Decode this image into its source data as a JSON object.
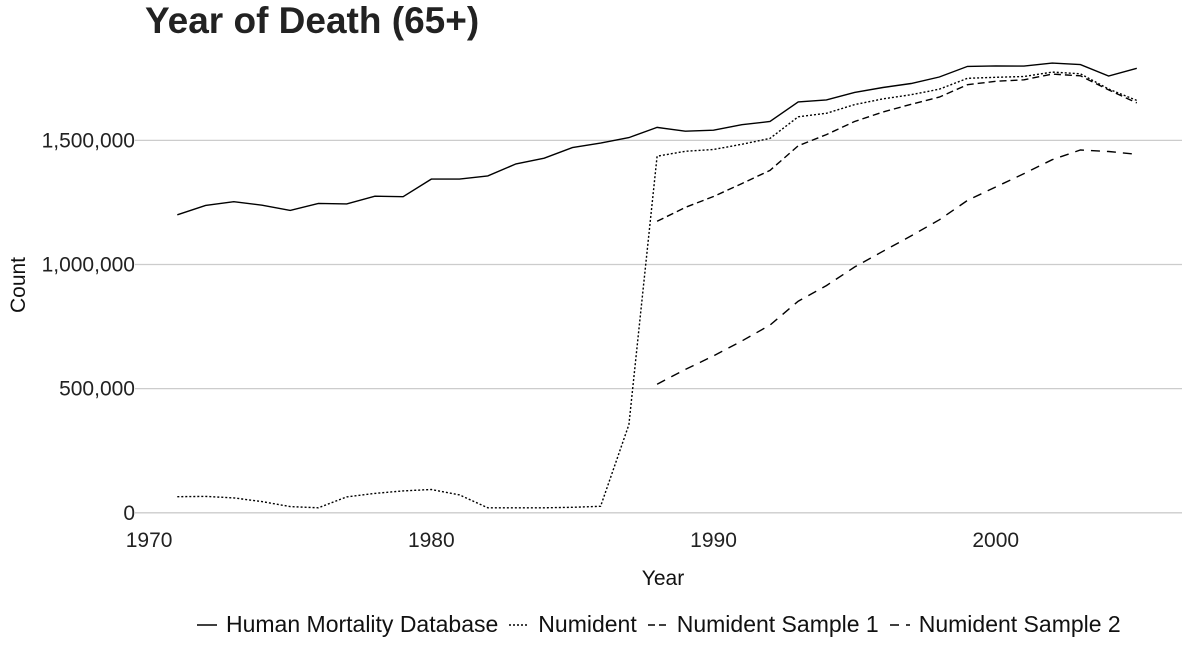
{
  "chart_data": {
    "type": "line",
    "title": "Year of Death (65+)",
    "xlabel": "Year",
    "ylabel": "Count",
    "xlim": [
      1969.5,
      2006.6
    ],
    "ylim": [
      -25000,
      1880000
    ],
    "x_ticks": [
      1970,
      1980,
      1990,
      2000
    ],
    "x_tick_labels": [
      "1970",
      "1980",
      "1990",
      "2000"
    ],
    "y_ticks": [
      0,
      500000,
      1000000,
      1500000
    ],
    "y_tick_labels": [
      "0",
      "500,000",
      "1,000,000",
      "1,500,000"
    ],
    "grid": "horizontal",
    "legend_position": "bottom",
    "series": [
      {
        "name": "Human Mortality Database",
        "dash": "solid",
        "x": [
          1971,
          1972,
          1973,
          1974,
          1975,
          1976,
          1977,
          1978,
          1979,
          1980,
          1981,
          1982,
          1983,
          1984,
          1985,
          1986,
          1987,
          1988,
          1989,
          1990,
          1991,
          1992,
          1993,
          1994,
          1995,
          1996,
          1997,
          1998,
          1999,
          2000,
          2001,
          2002,
          2003,
          2004,
          2005
        ],
        "y": [
          1200000,
          1238000,
          1253000,
          1239000,
          1218000,
          1246000,
          1244000,
          1275000,
          1273000,
          1344000,
          1344000,
          1357000,
          1405000,
          1428000,
          1471000,
          1489000,
          1511000,
          1552000,
          1537000,
          1541000,
          1563000,
          1576000,
          1655000,
          1663000,
          1693000,
          1713000,
          1729000,
          1755000,
          1798000,
          1800000,
          1799000,
          1811000,
          1805000,
          1759000,
          1790000
        ]
      },
      {
        "name": "Numident",
        "dash": "dotted",
        "x": [
          1971,
          1972,
          1973,
          1974,
          1975,
          1976,
          1977,
          1978,
          1979,
          1980,
          1981,
          1982,
          1983,
          1984,
          1985,
          1986,
          1987,
          1988,
          1989,
          1990,
          1991,
          1992,
          1993,
          1994,
          1995,
          1996,
          1997,
          1998,
          1999,
          2000,
          2001,
          2002,
          2003,
          2004,
          2005
        ],
        "y": [
          65000,
          66000,
          60000,
          45000,
          25000,
          20000,
          64000,
          78000,
          88000,
          94000,
          72000,
          20000,
          20000,
          20000,
          22000,
          26000,
          355000,
          1436000,
          1456000,
          1463000,
          1484000,
          1508000,
          1595000,
          1609000,
          1644000,
          1667000,
          1684000,
          1706000,
          1750000,
          1754000,
          1757000,
          1775000,
          1768000,
          1707000,
          1661000
        ]
      },
      {
        "name": "Numident Sample 1",
        "dash": "medium-dash",
        "x": [
          1988,
          1989,
          1990,
          1991,
          1992,
          1993,
          1994,
          1995,
          1996,
          1997,
          1998,
          1999,
          2000,
          2001,
          2002,
          2003,
          2004,
          2005
        ],
        "y": [
          1174000,
          1230000,
          1274000,
          1326000,
          1379000,
          1478000,
          1523000,
          1576000,
          1614000,
          1645000,
          1674000,
          1724000,
          1738000,
          1744000,
          1767000,
          1760000,
          1703000,
          1651000
        ]
      },
      {
        "name": "Numident Sample 2",
        "dash": "long-dash",
        "x": [
          1988,
          1989,
          1990,
          1991,
          1992,
          1993,
          1994,
          1995,
          1996,
          1997,
          1998,
          1999,
          2000,
          2001,
          2002,
          2003,
          2004,
          2005
        ],
        "y": [
          518000,
          577000,
          632000,
          692000,
          756000,
          852000,
          915000,
          990000,
          1053000,
          1115000,
          1180000,
          1258000,
          1312000,
          1366000,
          1422000,
          1461000,
          1455000,
          1444000
        ]
      }
    ]
  }
}
